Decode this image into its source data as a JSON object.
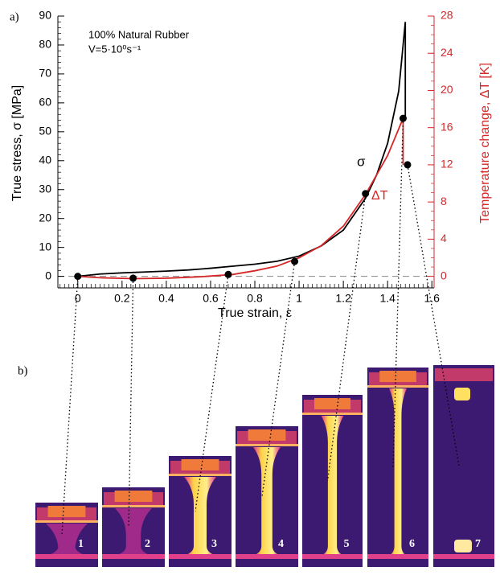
{
  "chart_data": {
    "type": "line",
    "panel_labels": [
      "a)",
      "b)"
    ],
    "annotations": [
      "100% Natural Rubber",
      "V=5·10⁰s⁻¹"
    ],
    "xlabel": "True strain, ε",
    "ylabel": "True stress, σ [MPa]",
    "y2label": "Temperature change, ΔT [K]",
    "xlim": [
      -0.09,
      1.61
    ],
    "xticks": [
      0,
      0.2,
      0.4,
      0.6,
      0.8,
      1,
      1.2,
      1.4,
      1.6
    ],
    "ylim": [
      -4,
      90
    ],
    "yticks": [
      0,
      10,
      20,
      30,
      40,
      50,
      60,
      70,
      80,
      90
    ],
    "y2lim": [
      -1.244,
      28
    ],
    "y2ticks": [
      0,
      4,
      8,
      12,
      16,
      20,
      24,
      28
    ],
    "series": [
      {
        "name": "σ",
        "color": "#000000",
        "x": [
          0,
          0.1,
          0.2,
          0.3,
          0.4,
          0.5,
          0.6,
          0.7,
          0.8,
          0.9,
          1.0,
          1.1,
          1.2,
          1.3,
          1.35,
          1.4,
          1.45,
          1.48,
          1.48
        ],
        "values": [
          0,
          0.8,
          1.2,
          1.5,
          1.8,
          2.2,
          2.8,
          3.5,
          4.2,
          5.2,
          7,
          10.5,
          16,
          27,
          35,
          46,
          64,
          88,
          55
        ]
      },
      {
        "name": "ΔT",
        "color": "#d62728",
        "axis": "y2",
        "x": [
          0,
          0.1,
          0.25,
          0.4,
          0.55,
          0.7,
          0.8,
          0.9,
          1.0,
          1.1,
          1.2,
          1.3,
          1.4,
          1.47,
          1.47
        ],
        "values": [
          0,
          -0.15,
          -0.25,
          -0.2,
          -0.05,
          0.2,
          0.6,
          1.1,
          2,
          3.3,
          5.4,
          8.8,
          13,
          17,
          12
        ]
      }
    ],
    "markers": {
      "axis": "y2",
      "x": [
        0,
        0.25,
        0.68,
        0.98,
        1.3,
        1.47,
        1.49
      ],
      "values": [
        0,
        -0.2,
        0.2,
        1.6,
        8.9,
        17,
        12
      ]
    },
    "image_labels": [
      "1",
      "2",
      "3",
      "4",
      "5",
      "6",
      "7"
    ]
  }
}
